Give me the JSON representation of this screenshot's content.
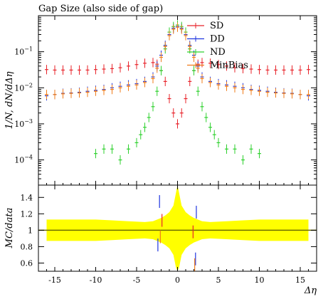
{
  "chart_data": [
    {
      "type": "scatter",
      "title": "Gap Size (also side of gap)",
      "xlabel": "",
      "ylabel": "1/N, dN/dΔη",
      "yscale": "log",
      "xlim": [
        -17,
        17
      ],
      "ylim": [
        2e-05,
        1.0
      ],
      "x_ticks": [
        -15,
        -10,
        -5,
        0,
        5,
        10,
        15
      ],
      "y_ticks": [
        {
          "value": 0.0001,
          "base": "10",
          "exp": "−4"
        },
        {
          "value": 0.001,
          "base": "10",
          "exp": "−3"
        },
        {
          "value": 0.01,
          "base": "10",
          "exp": "−2"
        },
        {
          "value": 0.1,
          "base": "10",
          "exp": "−1"
        }
      ],
      "legend_position": "top-right",
      "series": [
        {
          "name": "SD",
          "color": "#e8232a",
          "points": [
            [
              -16,
              0.032
            ],
            [
              -15,
              0.031
            ],
            [
              -14,
              0.031
            ],
            [
              -13,
              0.031
            ],
            [
              -12,
              0.031
            ],
            [
              -11,
              0.031
            ],
            [
              -10,
              0.032
            ],
            [
              -9,
              0.033
            ],
            [
              -8,
              0.034
            ],
            [
              -7,
              0.036
            ],
            [
              -6,
              0.04
            ],
            [
              -5,
              0.044
            ],
            [
              -4,
              0.048
            ],
            [
              -3,
              0.05
            ],
            [
              -2.5,
              0.045
            ],
            [
              -2,
              0.03
            ],
            [
              -1.5,
              0.015
            ],
            [
              -1,
              0.005
            ],
            [
              -0.5,
              0.002
            ],
            [
              0,
              0.001
            ],
            [
              0.5,
              0.002
            ],
            [
              1,
              0.005
            ],
            [
              1.5,
              0.015
            ],
            [
              2,
              0.03
            ],
            [
              2.5,
              0.045
            ],
            [
              3,
              0.05
            ],
            [
              4,
              0.048
            ],
            [
              5,
              0.044
            ],
            [
              6,
              0.04
            ],
            [
              7,
              0.036
            ],
            [
              8,
              0.034
            ],
            [
              9,
              0.033
            ],
            [
              10,
              0.032
            ],
            [
              11,
              0.031
            ],
            [
              12,
              0.031
            ],
            [
              13,
              0.031
            ],
            [
              14,
              0.031
            ],
            [
              15,
              0.031
            ],
            [
              16,
              0.032
            ]
          ]
        },
        {
          "name": "DD",
          "color": "#1f35e0",
          "points": [
            [
              -16,
              0.006
            ],
            [
              -15,
              0.0065
            ],
            [
              -14,
              0.007
            ],
            [
              -13,
              0.0072
            ],
            [
              -12,
              0.0075
            ],
            [
              -11,
              0.008
            ],
            [
              -10,
              0.0085
            ],
            [
              -9,
              0.009
            ],
            [
              -8,
              0.01
            ],
            [
              -7,
              0.011
            ],
            [
              -6,
              0.012
            ],
            [
              -5,
              0.013
            ],
            [
              -4,
              0.015
            ],
            [
              -3,
              0.02
            ],
            [
              -2.5,
              0.04
            ],
            [
              -2,
              0.08
            ],
            [
              -1.5,
              0.15
            ],
            [
              -1,
              0.3
            ],
            [
              -0.5,
              0.45
            ],
            [
              0,
              0.5
            ],
            [
              0.5,
              0.45
            ],
            [
              1,
              0.3
            ],
            [
              1.5,
              0.15
            ],
            [
              2,
              0.08
            ],
            [
              2.5,
              0.04
            ],
            [
              3,
              0.02
            ],
            [
              4,
              0.015
            ],
            [
              5,
              0.013
            ],
            [
              6,
              0.012
            ],
            [
              7,
              0.011
            ],
            [
              8,
              0.01
            ],
            [
              9,
              0.009
            ],
            [
              10,
              0.0085
            ],
            [
              11,
              0.008
            ],
            [
              12,
              0.0075
            ],
            [
              13,
              0.0072
            ],
            [
              14,
              0.007
            ],
            [
              15,
              0.0065
            ],
            [
              16,
              0.006
            ]
          ]
        },
        {
          "name": "ND",
          "color": "#2fd12f",
          "points": [
            [
              -10,
              0.00015
            ],
            [
              -9,
              0.0002
            ],
            [
              -8,
              0.0002
            ],
            [
              -7,
              0.0001
            ],
            [
              -6,
              0.0002
            ],
            [
              -5,
              0.0003
            ],
            [
              -4.5,
              0.0005
            ],
            [
              -4,
              0.0008
            ],
            [
              -3.5,
              0.0015
            ],
            [
              -3,
              0.003
            ],
            [
              -2.5,
              0.008
            ],
            [
              -2,
              0.03
            ],
            [
              -1.5,
              0.12
            ],
            [
              -1,
              0.35
            ],
            [
              -0.5,
              0.5
            ],
            [
              0,
              0.55
            ],
            [
              0.5,
              0.5
            ],
            [
              1,
              0.35
            ],
            [
              1.5,
              0.12
            ],
            [
              2,
              0.03
            ],
            [
              2.5,
              0.008
            ],
            [
              3,
              0.003
            ],
            [
              3.5,
              0.0015
            ],
            [
              4,
              0.0008
            ],
            [
              4.5,
              0.0005
            ],
            [
              5,
              0.0003
            ],
            [
              6,
              0.0002
            ],
            [
              7,
              0.0002
            ],
            [
              8,
              0.0001
            ],
            [
              9,
              0.0002
            ],
            [
              10,
              0.00015
            ]
          ]
        },
        {
          "name": "MinBias",
          "color": "#f07c1a",
          "points": [
            [
              -16,
              0.0065
            ],
            [
              -15,
              0.0065
            ],
            [
              -14,
              0.0068
            ],
            [
              -13,
              0.007
            ],
            [
              -12,
              0.0072
            ],
            [
              -11,
              0.0075
            ],
            [
              -10,
              0.008
            ],
            [
              -9,
              0.0085
            ],
            [
              -8,
              0.009
            ],
            [
              -7,
              0.01
            ],
            [
              -6,
              0.011
            ],
            [
              -5,
              0.012
            ],
            [
              -4,
              0.014
            ],
            [
              -3,
              0.018
            ],
            [
              -2.5,
              0.035
            ],
            [
              -2,
              0.07
            ],
            [
              -1.5,
              0.14
            ],
            [
              -1,
              0.28
            ],
            [
              -0.5,
              0.42
            ],
            [
              0,
              0.48
            ],
            [
              0.5,
              0.42
            ],
            [
              1,
              0.28
            ],
            [
              1.5,
              0.14
            ],
            [
              2,
              0.07
            ],
            [
              2.5,
              0.035
            ],
            [
              3,
              0.018
            ],
            [
              4,
              0.014
            ],
            [
              5,
              0.012
            ],
            [
              6,
              0.011
            ],
            [
              7,
              0.01
            ],
            [
              8,
              0.009
            ],
            [
              9,
              0.0085
            ],
            [
              10,
              0.008
            ],
            [
              11,
              0.0075
            ],
            [
              12,
              0.0072
            ],
            [
              13,
              0.007
            ],
            [
              14,
              0.0068
            ],
            [
              15,
              0.0065
            ],
            [
              16,
              0.0065
            ]
          ]
        }
      ]
    },
    {
      "type": "area",
      "xlabel": "Δη",
      "ylabel": "MC/data",
      "xlim": [
        -17,
        17
      ],
      "ylim": [
        0.5,
        1.55
      ],
      "x_ticks": [
        -15,
        -10,
        -5,
        0,
        5,
        10,
        15
      ],
      "y_ticks": [
        0.6,
        0.8,
        1,
        1.2,
        1.4
      ],
      "reference_line": 1,
      "band": {
        "color": "#ffff00",
        "x": [
          -16,
          -14,
          -12,
          -10,
          -8,
          -6,
          -4,
          -3,
          -2,
          -1.5,
          -1,
          -0.5,
          -0.2,
          0,
          0.2,
          0.5,
          1,
          1.5,
          2,
          3,
          4,
          6,
          8,
          10,
          12,
          14,
          16
        ],
        "half_width": [
          0.13,
          0.13,
          0.13,
          0.13,
          0.12,
          0.11,
          0.1,
          0.11,
          0.15,
          0.18,
          0.22,
          0.3,
          0.45,
          0.55,
          0.45,
          0.3,
          0.22,
          0.18,
          0.15,
          0.11,
          0.1,
          0.11,
          0.12,
          0.13,
          0.13,
          0.13,
          0.13
        ]
      },
      "series": [
        {
          "color": "#1f35e0",
          "points": [
            [
              -2.2,
              1.35
            ],
            [
              -2.4,
              0.82
            ],
            [
              2.2,
              0.65
            ],
            [
              2.3,
              1.22
            ]
          ]
        },
        {
          "color": "#f07c1a",
          "points": [
            [
              -2.1,
              0.92
            ],
            [
              2.1,
              0.58
            ]
          ]
        },
        {
          "color": "#e8232a",
          "points": [
            [
              -1.9,
              1.12
            ],
            [
              1.9,
              0.98
            ]
          ]
        }
      ]
    }
  ]
}
